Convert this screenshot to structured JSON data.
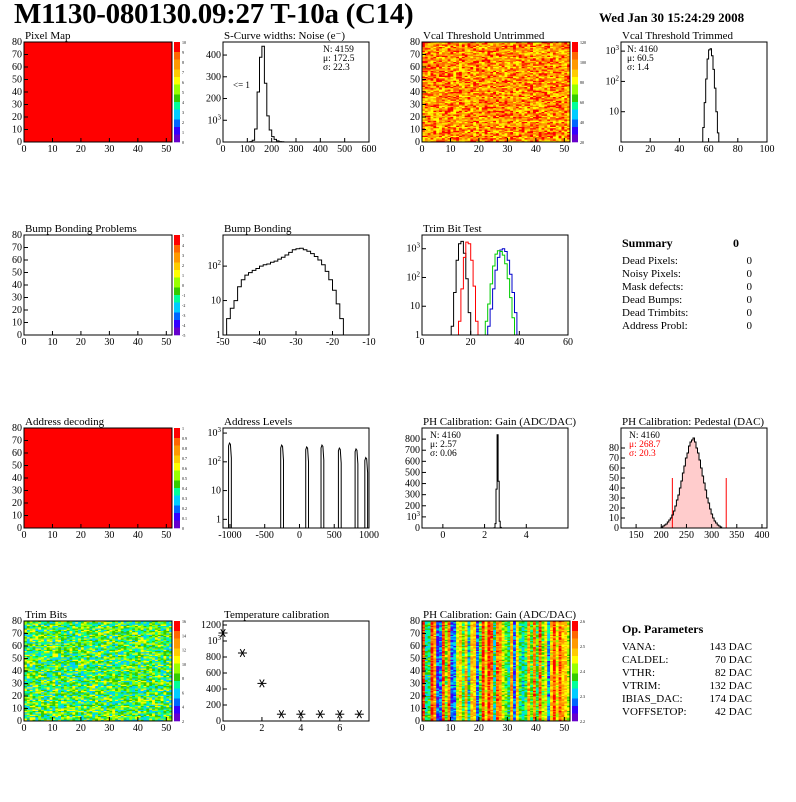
{
  "header": {
    "title": "M1130-080130.09:27 T-10a (C14)",
    "date": "Wed Jan 30 15:24:29 2008"
  },
  "colors": {
    "red": "#ff0000",
    "blue": "#0000cc",
    "green": "#00cc00",
    "black": "#000000"
  },
  "chart_data": [
    {
      "id": "pixel_map",
      "type": "heatmap",
      "title": "Pixel Map",
      "xlim": [
        0,
        52
      ],
      "ylim": [
        0,
        80
      ],
      "xticks": [
        "0",
        "10",
        "20",
        "30",
        "40",
        "50"
      ],
      "yticks": [
        "0",
        "10",
        "20",
        "30",
        "40",
        "50",
        "60",
        "70",
        "80"
      ],
      "fill": "uniform",
      "uniform_value": 10,
      "palette_ticks": [
        "10",
        "9",
        "8",
        "7",
        "6",
        "5",
        "4",
        "3",
        "2",
        "1",
        "0"
      ]
    },
    {
      "id": "scurve",
      "type": "histogram",
      "title": "S-Curve widths: Noise (e⁻)",
      "xlim": [
        0,
        600
      ],
      "ylim": [
        0,
        460
      ],
      "bin_width": 10,
      "bin_start": 110,
      "xticks": [
        "0",
        "100",
        "200",
        "300",
        "400",
        "500",
        "600"
      ],
      "yticks": [
        "0",
        "100",
        "200",
        "300",
        "400"
      ],
      "values": [
        2,
        8,
        60,
        230,
        390,
        440,
        270,
        120,
        55,
        25,
        12,
        5,
        2,
        1
      ],
      "stats": [
        "N: 4159",
        "μ: 172.5",
        "σ: 22.3"
      ],
      "annotation": "<= 1"
    },
    {
      "id": "vcal_untrimmed",
      "type": "heatmap",
      "title": "Vcal Threshold Untrimmed",
      "xlim": [
        0,
        52
      ],
      "ylim": [
        0,
        80
      ],
      "xticks": [
        "0",
        "10",
        "20",
        "30",
        "40",
        "50"
      ],
      "yticks": [
        "0",
        "10",
        "20",
        "30",
        "40",
        "50",
        "60",
        "70",
        "80"
      ],
      "fill": "noise",
      "noise_range": [
        55,
        95
      ],
      "palette_ticks": [
        "120",
        "100",
        "80",
        "60",
        "40",
        "20"
      ]
    },
    {
      "id": "vcal_trimmed",
      "type": "histogram",
      "title": "Vcal Threshold Trimmed",
      "xlim": [
        0,
        100
      ],
      "log": true,
      "ylim": [
        1,
        2000
      ],
      "bin_width": 1,
      "bin_start": 56,
      "xticks": [
        "0",
        "20",
        "40",
        "60",
        "80",
        "100"
      ],
      "yticks": [
        "10",
        "10²",
        "10³"
      ],
      "values": [
        3,
        20,
        120,
        550,
        1100,
        1200,
        700,
        250,
        60,
        10,
        2
      ],
      "stats": [
        "N: 4160",
        "μ: 60.5",
        "σ:  1.4"
      ]
    },
    {
      "id": "bump_problems",
      "type": "heatmap",
      "title": "Bump Bonding Problems",
      "xlim": [
        0,
        52
      ],
      "ylim": [
        0,
        80
      ],
      "xticks": [
        "0",
        "10",
        "20",
        "30",
        "40",
        "50"
      ],
      "yticks": [
        "0",
        "10",
        "20",
        "30",
        "40",
        "50",
        "60",
        "70",
        "80"
      ],
      "fill": "empty",
      "palette_ticks": [
        "5",
        "4",
        "3",
        "2",
        "1",
        "0",
        "-1",
        "-2",
        "-3",
        "-4",
        "-5"
      ]
    },
    {
      "id": "bump_bonding",
      "type": "histogram",
      "title": "Bump Bonding",
      "xlim": [
        -50,
        -10
      ],
      "log": true,
      "ylim": [
        1,
        800
      ],
      "bin_width": 1,
      "bin_start": -49,
      "xticks": [
        "-50",
        "-40",
        "-30",
        "-20",
        "-10"
      ],
      "yticks": [
        "1",
        "10",
        "10²"
      ],
      "values": [
        3,
        6,
        10,
        25,
        40,
        55,
        65,
        75,
        85,
        100,
        110,
        115,
        130,
        140,
        160,
        180,
        210,
        250,
        300,
        320,
        330,
        300,
        270,
        230,
        190,
        150,
        110,
        70,
        40,
        20,
        8,
        3,
        1
      ]
    },
    {
      "id": "trim_bit_test",
      "type": "histogram",
      "title": "Trim Bit Test",
      "xlim": [
        0,
        60
      ],
      "log": true,
      "ylim": [
        1,
        3000
      ],
      "bin_width": 1,
      "xticks": [
        "0",
        "20",
        "40",
        "60"
      ],
      "yticks": [
        "1",
        "10",
        "10²",
        "10³"
      ],
      "series": [
        {
          "color": "#000000",
          "bin_start": 12,
          "values": [
            2,
            30,
            400,
            1500,
            1800,
            700,
            90,
            6
          ]
        },
        {
          "color": "#ff0000",
          "bin_start": 15,
          "values": [
            3,
            40,
            500,
            1700,
            1500,
            400,
            50,
            3
          ]
        },
        {
          "color": "#0000cc",
          "bin_start": 27,
          "values": [
            2,
            8,
            40,
            180,
            500,
            900,
            1000,
            800,
            400,
            130,
            30,
            6,
            1
          ]
        },
        {
          "color": "#00cc00",
          "bin_start": 26,
          "values": [
            3,
            12,
            60,
            250,
            650,
            850,
            800,
            600,
            300,
            90,
            20,
            4
          ]
        }
      ]
    },
    {
      "id": "address_decoding",
      "type": "heatmap",
      "title": "Address decoding",
      "xlim": [
        0,
        52
      ],
      "ylim": [
        0,
        80
      ],
      "xticks": [
        "0",
        "10",
        "20",
        "30",
        "40",
        "50"
      ],
      "yticks": [
        "0",
        "10",
        "20",
        "30",
        "40",
        "50",
        "60",
        "70",
        "80"
      ],
      "fill": "uniform",
      "uniform_value": 1,
      "palette_ticks": [
        "1",
        "0.9",
        "0.8",
        "0.7",
        "0.6",
        "0.5",
        "0.4",
        "0.3",
        "0.2",
        "0.1",
        "0"
      ]
    },
    {
      "id": "address_levels",
      "type": "histogram",
      "title": "Address Levels",
      "xlim": [
        -1100,
        1000
      ],
      "log": true,
      "ylim": [
        0.5,
        1500
      ],
      "peak_width": 40,
      "xticks": [
        "-1000",
        "-500",
        "0",
        "500",
        "1000"
      ],
      "yticks": [
        "1",
        "10",
        "10²",
        "10³"
      ],
      "peaks": [
        {
          "x": -1000,
          "h": 450
        },
        {
          "x": -250,
          "h": 380
        },
        {
          "x": 110,
          "h": 330
        },
        {
          "x": 330,
          "h": 380
        },
        {
          "x": 580,
          "h": 300
        },
        {
          "x": 820,
          "h": 280
        },
        {
          "x": 960,
          "h": 140
        }
      ]
    },
    {
      "id": "ph_gain",
      "type": "histogram",
      "title": "PH Calibration: Gain (ADC/DAC)",
      "xlim": [
        -1,
        6
      ],
      "ylim": [
        0,
        900
      ],
      "bin_width": 0.05,
      "bin_start": 2.45,
      "xticks": [
        "0",
        "2",
        "4"
      ],
      "yticks": [
        "0",
        "100",
        "200",
        "300",
        "400",
        "500",
        "600",
        "700",
        "800"
      ],
      "values": [
        3,
        40,
        350,
        840,
        420,
        60,
        5
      ],
      "stats": [
        "N: 4160",
        "μ: 2.57",
        "σ: 0.06"
      ]
    },
    {
      "id": "ph_pedestal",
      "type": "histogram",
      "title": "PH Calibration: Pedestal (DAC)",
      "xlim": [
        120,
        410
      ],
      "ylim": [
        0,
        100
      ],
      "bin_width": 3,
      "bin_start": 200,
      "xticks": [
        "150",
        "200",
        "250",
        "300",
        "350",
        "400"
      ],
      "yticks": [
        "0",
        "10",
        "20",
        "30",
        "40",
        "50",
        "60",
        "70",
        "80"
      ],
      "values": [
        1,
        2,
        3,
        4,
        6,
        8,
        10,
        13,
        17,
        22,
        28,
        33,
        40,
        47,
        55,
        62,
        70,
        75,
        82,
        86,
        88,
        90,
        86,
        80,
        75,
        68,
        60,
        52,
        45,
        38,
        30,
        25,
        19,
        14,
        10,
        7,
        5,
        3,
        2,
        1
      ],
      "stats": [
        "N: 4160",
        "μ: 268.7",
        "σ: 20.3"
      ],
      "fit_window": [
        222,
        329
      ]
    },
    {
      "id": "trim_bits",
      "type": "heatmap",
      "title": "Trim Bits",
      "xlim": [
        0,
        52
      ],
      "ylim": [
        0,
        80
      ],
      "xticks": [
        "0",
        "10",
        "20",
        "30",
        "40",
        "50"
      ],
      "yticks": [
        "0",
        "10",
        "20",
        "30",
        "40",
        "50",
        "60",
        "70",
        "80"
      ],
      "fill": "noise",
      "noise_range": [
        6,
        10
      ],
      "palette_ticks": [
        "16",
        "14",
        "12",
        "10",
        "8",
        "6",
        "4",
        "2"
      ]
    },
    {
      "id": "temperature",
      "type": "scatter",
      "title": "Temperature calibration",
      "xlim": [
        0,
        7.5
      ],
      "ylim": [
        0,
        1250
      ],
      "xticks": [
        "0",
        "2",
        "4",
        "6"
      ],
      "yticks": [
        "0",
        "200",
        "400",
        "600",
        "800",
        "1000",
        "1200"
      ],
      "points": [
        [
          0,
          1100
        ],
        [
          1,
          850
        ],
        [
          2,
          470
        ],
        [
          3,
          85
        ],
        [
          4,
          85
        ],
        [
          5,
          85
        ],
        [
          6,
          85
        ],
        [
          7,
          85
        ]
      ]
    },
    {
      "id": "ph_gain_map",
      "type": "heatmap",
      "title": "PH Calibration: Gain (ADC/DAC)",
      "xlim": [
        0,
        52
      ],
      "ylim": [
        0,
        80
      ],
      "xticks": [
        "0",
        "10",
        "20",
        "30",
        "40",
        "50"
      ],
      "yticks": [
        "0",
        "10",
        "20",
        "30",
        "40",
        "50",
        "60",
        "70",
        "80"
      ],
      "fill": "columns",
      "noise_range": [
        2.2,
        2.7
      ],
      "palette_ticks": [
        "2.6",
        "2.5",
        "2.4",
        "2.3",
        "2.2"
      ]
    }
  ],
  "summary": {
    "title": "Summary",
    "total": "0",
    "rows": [
      {
        "label": "Dead Pixels:",
        "value": "0"
      },
      {
        "label": "Noisy Pixels:",
        "value": "0"
      },
      {
        "label": "Mask defects:",
        "value": "0"
      },
      {
        "label": "Dead Bumps:",
        "value": "0"
      },
      {
        "label": "Dead Trimbits:",
        "value": "0"
      },
      {
        "label": "Address Probl:",
        "value": "0"
      }
    ]
  },
  "op_parameters": {
    "title": "Op. Parameters",
    "rows": [
      {
        "label": "VANA:",
        "value": "143 DAC"
      },
      {
        "label": "CALDEL:",
        "value": "70 DAC"
      },
      {
        "label": "VTHR:",
        "value": "82 DAC"
      },
      {
        "label": "VTRIM:",
        "value": "132 DAC"
      },
      {
        "label": "IBIAS_DAC:",
        "value": "174 DAC"
      },
      {
        "label": "VOFFSETOP:",
        "value": "42 DAC"
      }
    ]
  }
}
